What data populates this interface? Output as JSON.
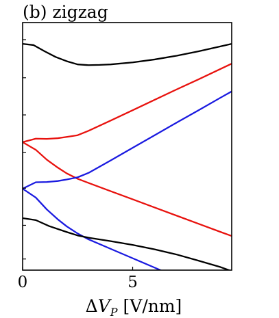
{
  "chart_data": {
    "type": "line",
    "title": "(b) zigzag",
    "xlabel": {
      "prefix": "Δ",
      "symbol": "V",
      "subscript": "P",
      "unit": " [V/nm]"
    },
    "ylabel": "",
    "xlim": [
      0,
      9.5
    ],
    "ylim": [
      0,
      1
    ],
    "x_ticks": [
      0,
      5
    ],
    "x_tick_labels": [
      "0",
      "5"
    ],
    "y_ticks": [
      0.045,
      0.181,
      0.331,
      0.476,
      0.627,
      0.777,
      0.931
    ],
    "y_tick_labels": [
      "",
      "",
      "",
      "",
      "",
      "",
      ""
    ],
    "grid": false,
    "legend": "none",
    "colors": {
      "black": "#000000",
      "red": "#e8120e",
      "blue": "#1a1ae0"
    },
    "series": [
      {
        "color": "black",
        "x": [
          0,
          0.5,
          1,
          1.5,
          2,
          2.5,
          3,
          3.5,
          4,
          5,
          6,
          7,
          8,
          9,
          9.5
        ],
        "y": [
          0.914,
          0.909,
          0.884,
          0.861,
          0.844,
          0.831,
          0.828,
          0.829,
          0.831,
          0.839,
          0.851,
          0.866,
          0.884,
          0.904,
          0.914
        ]
      },
      {
        "color": "red",
        "x": [
          0,
          0.6,
          1.1,
          1.6,
          2,
          2.5,
          3,
          4,
          5,
          6,
          7,
          8,
          9,
          9.5
        ],
        "y": [
          0.517,
          0.531,
          0.53,
          0.533,
          0.538,
          0.545,
          0.563,
          0.604,
          0.646,
          0.688,
          0.73,
          0.771,
          0.813,
          0.834
        ]
      },
      {
        "color": "red",
        "x": [
          0,
          0.6,
          1.1,
          1.6,
          2,
          2.5,
          3,
          4,
          5,
          6,
          7,
          8,
          9,
          9.5
        ],
        "y": [
          0.517,
          0.486,
          0.446,
          0.414,
          0.391,
          0.369,
          0.352,
          0.319,
          0.286,
          0.253,
          0.22,
          0.187,
          0.154,
          0.138
        ]
      },
      {
        "color": "blue",
        "x": [
          0,
          0.6,
          1.1,
          1.6,
          2,
          2.5,
          3,
          4,
          5,
          6,
          7,
          8,
          9,
          9.5
        ],
        "y": [
          0.329,
          0.355,
          0.356,
          0.36,
          0.366,
          0.375,
          0.393,
          0.443,
          0.494,
          0.545,
          0.596,
          0.646,
          0.697,
          0.722
        ]
      },
      {
        "color": "blue",
        "x": [
          0,
          0.6,
          1.1,
          1.6,
          2,
          2.5,
          3,
          4,
          5,
          6,
          6.6
        ],
        "y": [
          0.329,
          0.293,
          0.245,
          0.205,
          0.177,
          0.148,
          0.124,
          0.086,
          0.048,
          0.01,
          -0.013
        ]
      },
      {
        "color": "black",
        "x": [
          0,
          0.6,
          1.2,
          2,
          2.5,
          3,
          4,
          5,
          6,
          7,
          8,
          9,
          9.5
        ],
        "y": [
          0.21,
          0.202,
          0.178,
          0.154,
          0.14,
          0.131,
          0.117,
          0.102,
          0.084,
          0.063,
          0.038,
          0.012,
          -0.004
        ]
      }
    ]
  }
}
